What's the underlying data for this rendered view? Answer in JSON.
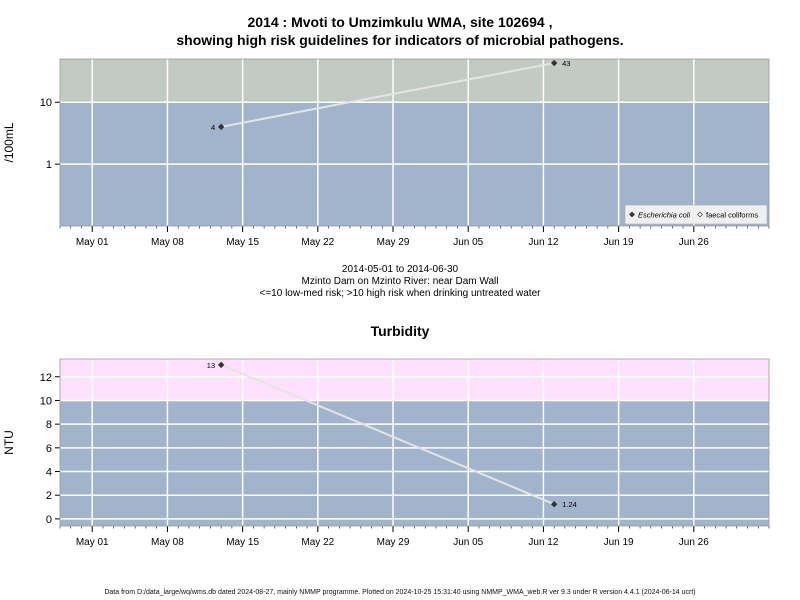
{
  "title_line1": "2014 : Mvoti to Umzimkulu WMA, site 102694 ,",
  "title_line2": "showing high risk guidelines for indicators of microbial pathogens.",
  "caption": {
    "date_range": "2014-05-01 to 2014-06-30",
    "site": "Mzinto Dam on Mzinto River: near Dam Wall",
    "note": "<=10 low-med risk; >10 high risk when drinking untreated water"
  },
  "footer": "Data from D:/data_large/wq/wms.db dated 2024-08-27, mainly NMMP programme. Plotted on 2024-10-25 15:31:40 using NMMP_WMA_web.R ver 9.3 under R version 4.4.1 (2024-06-14 ucrt)",
  "colors": {
    "low_band_top": "#a2b4cc",
    "high_band_top": "#c1cbc3",
    "low_band_bottom": "#a2b4cc",
    "high_band_bottom": "#ffe0fd",
    "series_line": "#e5e5e5",
    "grid": "#ffffff"
  },
  "chart_data": [
    {
      "type": "line",
      "title": "",
      "ylabel": "/100mL",
      "xlabel": "",
      "y_scale": "log",
      "ylim": [
        0.1,
        50
      ],
      "yticks": [
        1,
        10
      ],
      "ytick_labels": [
        "1",
        "10"
      ],
      "xlim": [
        "2014-04-28",
        "2014-07-03"
      ],
      "xticks": [
        "2014-05-01",
        "2014-05-08",
        "2014-05-15",
        "2014-05-22",
        "2014-05-29",
        "2014-06-05",
        "2014-06-12",
        "2014-06-19",
        "2014-06-26"
      ],
      "xtick_labels": [
        "May 01",
        "May 08",
        "May 15",
        "May 22",
        "May 29",
        "Jun 05",
        "Jun 12",
        "Jun 19",
        "Jun 26"
      ],
      "threshold": 10,
      "grid": true,
      "legend_position": "bottom-right",
      "legend": [
        {
          "label": "Escherichia coli",
          "symbol": "filled-diamond"
        },
        {
          "label": "faecal coliforms",
          "symbol": "open-diamond"
        }
      ],
      "series": [
        {
          "name": "Escherichia coli",
          "x": [
            "2014-05-13",
            "2014-06-13"
          ],
          "values": [
            4,
            43
          ],
          "labels": [
            "4",
            "43"
          ]
        }
      ]
    },
    {
      "type": "line",
      "title": "Turbidity",
      "ylabel": "NTU",
      "xlabel": "",
      "y_scale": "linear",
      "ylim": [
        -0.6,
        13.5
      ],
      "yticks": [
        0,
        2,
        4,
        6,
        8,
        10,
        12
      ],
      "ytick_labels": [
        "0",
        "2",
        "4",
        "6",
        "8",
        "10",
        "12"
      ],
      "xlim": [
        "2014-04-28",
        "2014-07-03"
      ],
      "xticks": [
        "2014-05-01",
        "2014-05-08",
        "2014-05-15",
        "2014-05-22",
        "2014-05-29",
        "2014-06-05",
        "2014-06-12",
        "2014-06-19",
        "2014-06-26"
      ],
      "xtick_labels": [
        "May 01",
        "May 08",
        "May 15",
        "May 22",
        "May 29",
        "Jun 05",
        "Jun 12",
        "Jun 19",
        "Jun 26"
      ],
      "threshold": 10,
      "grid": true,
      "series": [
        {
          "x": [
            "2014-05-13",
            "2014-06-13"
          ],
          "values": [
            13,
            1.24
          ],
          "labels": [
            "13",
            "1.24"
          ]
        }
      ]
    }
  ]
}
